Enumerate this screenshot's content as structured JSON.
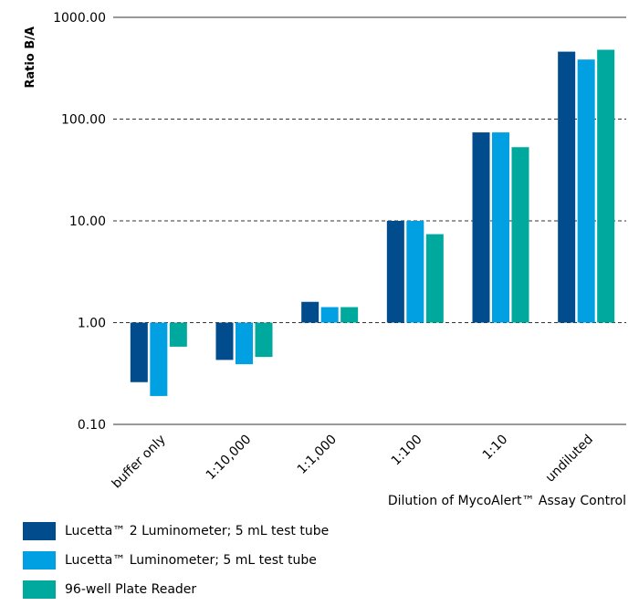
{
  "chart_data": {
    "type": "bar",
    "scale": "log",
    "ylabel": "Ratio B/A",
    "xlabel": "Dilution of MycoAlert™ Assay Control",
    "ylim": [
      0.1,
      1000
    ],
    "yticks": [
      "1000.00",
      "100.00",
      "10.00",
      "1.00",
      "0.10"
    ],
    "ytick_values": [
      1000,
      100,
      10,
      1,
      0.1
    ],
    "baseline": 1,
    "categories": [
      "buffer only",
      "1:10,000",
      "1:1,000",
      "1:100",
      "1:10",
      "undiluted"
    ],
    "series": [
      {
        "name": "Lucetta™ 2 Luminometer; 5 mL test tube",
        "color": "#004c8c",
        "values": [
          0.26,
          0.43,
          1.6,
          10,
          74,
          460
        ]
      },
      {
        "name": "Lucetta™ Luminometer; 5 mL test tube",
        "color": "#00a0e3",
        "values": [
          0.19,
          0.39,
          1.42,
          10,
          74,
          385
        ]
      },
      {
        "name": "96-well Plate Reader",
        "color": "#00a99e",
        "values": [
          0.58,
          0.46,
          1.42,
          7.4,
          53,
          480
        ]
      }
    ],
    "grid": "dashed-horizontal",
    "legend": "bottom-left"
  }
}
